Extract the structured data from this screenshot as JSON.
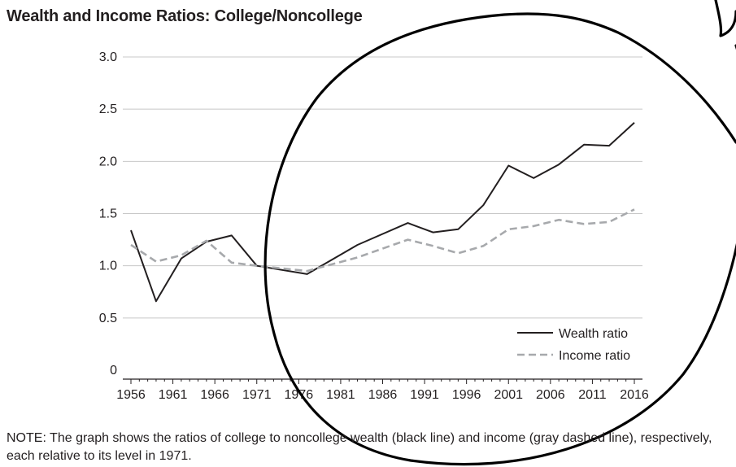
{
  "title": "Wealth and Income Ratios: College/Noncollege",
  "note": "NOTE: The graph shows the ratios of college to noncollege wealth (black line) and income (gray dashed line), respectively, each relative to its level in 1971.",
  "colors": {
    "wealth": "#231f20",
    "income": "#a7a9ac",
    "grid": "#c8c8c8",
    "axis": "#231f20",
    "circle": "#000000"
  },
  "chart_data": {
    "type": "line",
    "title": "Wealth and Income Ratios: College/Noncollege",
    "xlabel": "",
    "ylabel": "",
    "xlim": [
      1956,
      2016
    ],
    "ylim": [
      0,
      3.0
    ],
    "grid": true,
    "legend_position": "bottom-right",
    "x_tick_labels": [
      "1956",
      "1961",
      "1966",
      "1971",
      "1976",
      "1981",
      "1986",
      "1991",
      "1996",
      "2001",
      "2006",
      "2011",
      "2016"
    ],
    "y_tick_labels": [
      "0",
      "0.5",
      "1.0",
      "1.5",
      "2.0",
      "2.5",
      "3.0"
    ],
    "series": [
      {
        "name": "Wealth ratio",
        "style": "solid",
        "x": [
          1956,
          1959,
          1962,
          1965,
          1968,
          1971,
          1977,
          1983,
          1989,
          1992,
          1995,
          1998,
          2001,
          2004,
          2007,
          2010,
          2013,
          2016
        ],
        "y": [
          1.34,
          0.66,
          1.07,
          1.23,
          1.29,
          1.0,
          0.92,
          1.2,
          1.41,
          1.32,
          1.35,
          1.58,
          1.96,
          1.84,
          1.97,
          2.16,
          2.15,
          2.37
        ]
      },
      {
        "name": "Income ratio",
        "style": "dashed",
        "x": [
          1956,
          1959,
          1962,
          1965,
          1968,
          1971,
          1977,
          1983,
          1989,
          1992,
          1995,
          1998,
          2001,
          2004,
          2007,
          2010,
          2013,
          2016
        ],
        "y": [
          1.2,
          1.04,
          1.1,
          1.24,
          1.03,
          1.0,
          0.95,
          1.08,
          1.25,
          1.19,
          1.12,
          1.19,
          1.35,
          1.38,
          1.44,
          1.4,
          1.42,
          1.54
        ]
      }
    ]
  }
}
